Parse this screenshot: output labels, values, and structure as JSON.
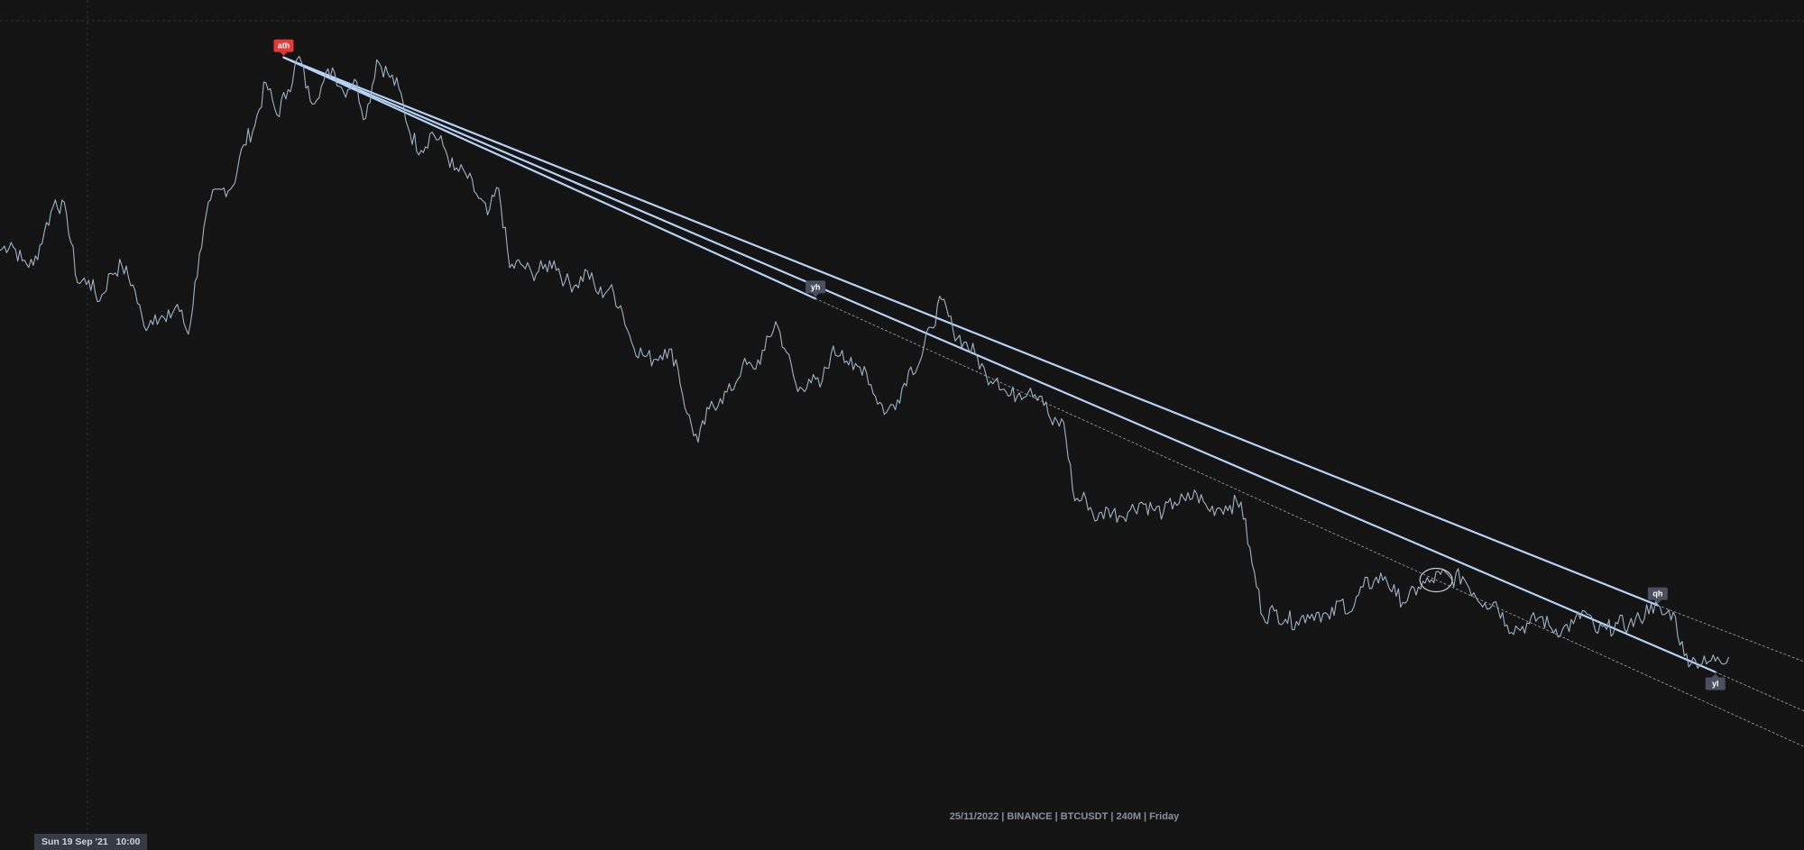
{
  "header": {
    "info_line": "25/11/2022 | BINANCE | BTCUSDT | 240M | Friday"
  },
  "crosshair": {
    "time_label": "Sun 19 Sep '21   10:00"
  },
  "markers": [
    {
      "label": "ath",
      "color": "#e53935"
    },
    {
      "label": "yh",
      "color": "#4a5060"
    },
    {
      "label": "qh",
      "color": "#4a5060"
    },
    {
      "label": "yl",
      "color": "#4a5060"
    }
  ],
  "colors": {
    "background": "#141414",
    "price_line": "#9fb3c8",
    "trend_line": "#b6d2f5",
    "dotted_line": "#8a8f99"
  },
  "chart_data": {
    "type": "line",
    "title": "",
    "xlabel": "",
    "ylabel": "",
    "symbol": "BTCUSDT",
    "exchange": "BINANCE",
    "timeframe": "240M",
    "grid": false,
    "series": [
      {
        "values": [
          52.2,
          52.9,
          51.3,
          50.9,
          53.8,
          56.6,
          55.4,
          49.4,
          49.6,
          47.8,
          50.2,
          50.9,
          49.2,
          45.6,
          46.6,
          46.0,
          47.5,
          44.9,
          51.9,
          56.6,
          57.5,
          57.8,
          61.4,
          63.1,
          66.8,
          64.0,
          66.2,
          69.1,
          65.2,
          66.5,
          68.1,
          66.0,
          67.1,
          63.7,
          68.8,
          67.6,
          66.3,
          62.4,
          60.9,
          62.5,
          61.3,
          59.2,
          58.9,
          57.1,
          55.3,
          57.6,
          50.7,
          51.0,
          50.2,
          50.6,
          51.3,
          49.5,
          49.2,
          50.4,
          48.4,
          48.9,
          47.4,
          44.2,
          43.1,
          42.7,
          43.6,
          42.7,
          38.0,
          35.5,
          38.4,
          39.3,
          40.0,
          42.2,
          41.9,
          43.5,
          46.0,
          43.3,
          39.9,
          41.0,
          40.3,
          43.2,
          43.5,
          41.8,
          42.1,
          39.5,
          38.1,
          39.2,
          41.7,
          42.5,
          45.5,
          47.9,
          45.3,
          44.2,
          43.2,
          41.3,
          41.1,
          39.5,
          39.8,
          40.2,
          39.5,
          37.0,
          37.2,
          30.4,
          30.6,
          28.7,
          29.7,
          29.1,
          29.6,
          30.3,
          29.7,
          29.4,
          30.3,
          30.4,
          31.0,
          29.7,
          29.8,
          30.0,
          30.3,
          24.9,
          20.3,
          20.8,
          20.1,
          19.9,
          20.5,
          20.7,
          20.1,
          21.7,
          20.8,
          22.9,
          23.4,
          23.8,
          22.1,
          21.7,
          22.9,
          23.3,
          24.0,
          23.6,
          23.8,
          22.4,
          21.5,
          21.6,
          19.6,
          19.3,
          19.7,
          20.3,
          19.3,
          19.2,
          19.7,
          20.8,
          19.0,
          19.2,
          19.7,
          19.6,
          20.1,
          21.4,
          20.5,
          20.7,
          16.9,
          16.5,
          16.2,
          16.8,
          16.8
        ]
      }
    ],
    "markers": [
      {
        "label": "ath",
        "x": 64,
        "y": 69.0
      },
      {
        "label": "yh",
        "x": 184,
        "y": 48.0
      },
      {
        "label": "qh",
        "x": 374,
        "y": 21.3
      },
      {
        "label": "yl",
        "x": 387,
        "y": 15.5
      }
    ],
    "trendlines": [
      {
        "style": "solid",
        "from": [
          64,
          69.0
        ],
        "to": [
          374,
          21.3
        ]
      },
      {
        "style": "solid",
        "from": [
          64,
          69.0
        ],
        "to": [
          387,
          15.5
        ]
      },
      {
        "style": "solid",
        "from": [
          64,
          69.0
        ],
        "to": [
          184,
          48.0
        ]
      },
      {
        "style": "dotted",
        "from": [
          184,
          48.0
        ],
        "to": [
          407,
          9.0
        ]
      },
      {
        "style": "dotted",
        "from": [
          374,
          21.3
        ],
        "to": [
          407,
          16.4
        ]
      },
      {
        "style": "dotted",
        "from": [
          387,
          15.5
        ],
        "to": [
          407,
          12.1
        ]
      }
    ],
    "annotations": [
      {
        "type": "ellipse",
        "x": 324,
        "y": 23.5
      }
    ],
    "xlim": [
      0,
      407
    ],
    "ylim": [
      0,
      74
    ]
  }
}
